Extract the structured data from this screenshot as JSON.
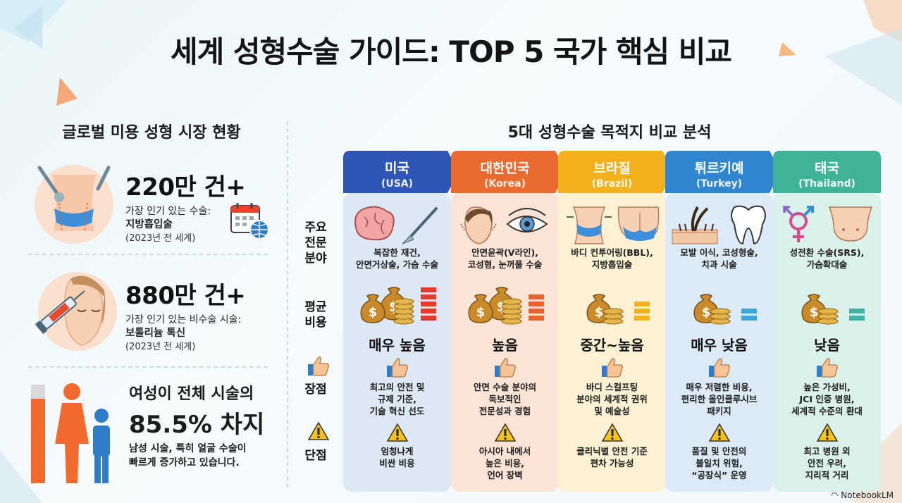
{
  "title": "세계 성형수술 가이드: TOP 5 국가 핵심 비교",
  "left": {
    "title": "글로벌 미용 성형 시장 현황",
    "stats": [
      {
        "big": "220만 건+",
        "line1": "가장 인기 있는 수술:",
        "line2": "지방흡입술",
        "line3": "(2023년 전 세계)"
      },
      {
        "big": "880만 건+",
        "line1": "가장 인기 있는 비수술 시술:",
        "line2": "보톨리늄 톡신",
        "line3": "(2023년 전 세계)"
      }
    ],
    "female": {
      "title": "여성이 전체 시술의",
      "big": "85.5% 차지",
      "desc1": "남성 시술, 특히 얼굴 수술이",
      "desc2": "빠르게 증가하고 있습니다."
    }
  },
  "right": {
    "title": "5대 성형수술 목적지 비교 분석",
    "row_labels": {
      "specialty": [
        "주요",
        "전문",
        "분야"
      ],
      "cost": [
        "평균",
        "비용"
      ],
      "pros": "장점",
      "cons": "단점"
    },
    "countries": [
      {
        "name": "미국",
        "en": "(USA)",
        "color": "#2f55b6",
        "body": "#dde8f5",
        "specialty": [
          "복잡한 재건,",
          "안면거상술, 가슴 수술"
        ],
        "cost": "매우 높음",
        "bars": 5,
        "bar_color": "#e03c2c",
        "pros": [
          "최고의 안전 및",
          "규제 기준,",
          "기술 혁신 선도"
        ],
        "cons": [
          "엄청나게",
          "비싼 비용"
        ]
      },
      {
        "name": "대한민국",
        "en": "(Korea)",
        "color": "#ea6a2f",
        "body": "#fbe4d6",
        "specialty": [
          "안면윤곽(V라인),",
          "코성형, 눈꺼풀 수술"
        ],
        "cost": "높음",
        "bars": 4,
        "bar_color": "#e8642f",
        "pros": [
          "안면 수술 분야의",
          "독보적인",
          "전문성과 경험"
        ],
        "cons": [
          "아시아 내에서",
          "높은 비용,",
          "언어 장벽"
        ]
      },
      {
        "name": "브라질",
        "en": "(Brazil)",
        "color": "#f2b01c",
        "body": "#fcf1d2",
        "specialty": [
          "바디 컨투어링(BBL),",
          "지방흡입술"
        ],
        "cost": "중간~높음",
        "bars": 3,
        "bar_color": "#f2b21e",
        "pros": [
          "바디 스컬프팅",
          "분야의 세계적 권위",
          "및 예술성"
        ],
        "cons": [
          "클리닉별 안전 기준",
          "편차 가능성"
        ]
      },
      {
        "name": "튀르키예",
        "en": "(Turkey)",
        "color": "#2f86cf",
        "body": "#dbeaf6",
        "specialty": [
          "모발 이식, 코성형술,",
          "치과 시술"
        ],
        "cost": "매우 낮음",
        "bars": 2,
        "bar_color": "#3fa5d8",
        "pros": [
          "매우 저렴한 비용,",
          "편리한 올인클루시브",
          "패키지"
        ],
        "cons": [
          "품질 및 안전의",
          "불일치 위험,",
          "“공장식” 운영"
        ]
      },
      {
        "name": "태국",
        "en": "(Thailand)",
        "color": "#3fb39a",
        "body": "#daf0ea",
        "specialty": [
          "성전환 수술(SRS),",
          "가슴확대술"
        ],
        "cost": "낮음",
        "bars": 2,
        "bar_color": "#40b3a2",
        "pros": [
          "높은 가성비,",
          "JCI 인증 병원,",
          "세계적 수준의 환대"
        ],
        "cons": [
          "최고 병원 외",
          "안전 우려,",
          "지리적 거리"
        ]
      }
    ]
  },
  "brand": "NotebookLM",
  "colors": {
    "orange": "#f26a2e",
    "blue": "#2f7cc8",
    "money": "#c98a2a"
  }
}
